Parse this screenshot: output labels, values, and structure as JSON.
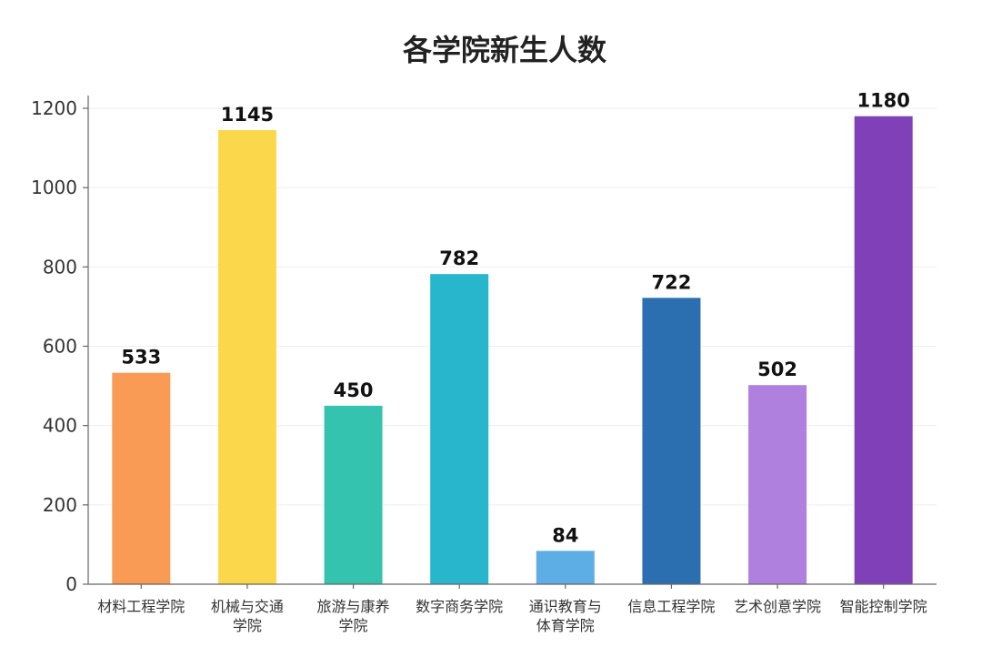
{
  "chart_data": {
    "type": "bar",
    "title": "各学院新生人数",
    "xlabel": "",
    "ylabel": "",
    "categories": [
      [
        "材料工程学院"
      ],
      [
        "机械与交通",
        "学院"
      ],
      [
        "旅游与康养",
        "学院"
      ],
      [
        "数字商务学院"
      ],
      [
        "通识教育与",
        "体育学院"
      ],
      [
        "信息工程学院"
      ],
      [
        "艺术创意学院"
      ],
      [
        "智能控制学院"
      ]
    ],
    "values": [
      533,
      1145,
      450,
      782,
      84,
      722,
      502,
      1180
    ],
    "colors": [
      "#f99a55",
      "#fbd84b",
      "#34c3af",
      "#27b6cb",
      "#5eaee6",
      "#2b6fb0",
      "#b080df",
      "#8040b8"
    ],
    "ylim": [
      0,
      1200
    ],
    "yticks": [
      0,
      200,
      400,
      600,
      800,
      1000,
      1200
    ],
    "grid": true,
    "legend": "none"
  }
}
